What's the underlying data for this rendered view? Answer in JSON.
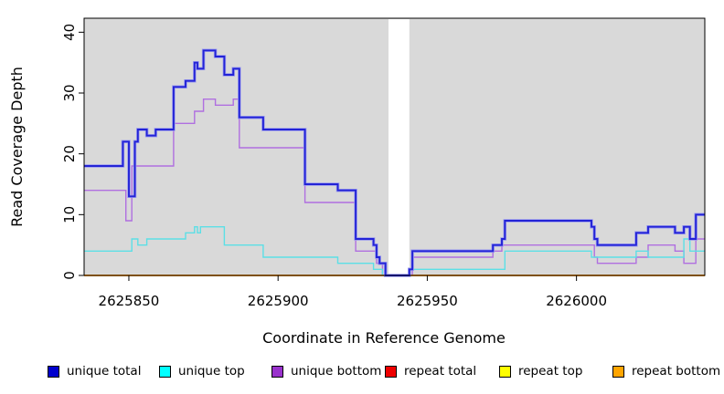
{
  "figure": {
    "plot_background": "#d9d9d9",
    "axis_color": "#000000",
    "gap_band_color": "#ffffff"
  },
  "chart_data": {
    "type": "line",
    "style": "step-after",
    "title": "",
    "xlabel": "Coordinate in Reference Genome",
    "ylabel": "Read Coverage Depth",
    "xlim": [
      2625835,
      2626043
    ],
    "ylim": [
      0,
      42.3
    ],
    "x_ticks": [
      2625850,
      2625900,
      2625950,
      2626000
    ],
    "y_ticks": [
      0,
      10,
      20,
      30,
      40
    ],
    "grid": false,
    "legend_position": "bottom",
    "gap_region": {
      "start": 2625937,
      "end": 2625944
    },
    "series": [
      {
        "name": "repeat total",
        "color": "#dd0000",
        "legend_color": "#ee0000",
        "width": 1.4,
        "steps": [
          [
            2625835,
            0
          ],
          [
            2626043,
            0
          ]
        ]
      },
      {
        "name": "repeat top",
        "color": "#ffff00",
        "legend_color": "#ffff00",
        "width": 1.4,
        "steps": [
          [
            2625835,
            0
          ],
          [
            2626043,
            0
          ]
        ]
      },
      {
        "name": "unique bottom",
        "color": "#b06fe0",
        "legend_color": "#9932cc",
        "width": 1.4,
        "steps": [
          [
            2625835,
            14
          ],
          [
            2625849,
            9
          ],
          [
            2625851,
            18
          ],
          [
            2625865,
            25
          ],
          [
            2625872,
            27
          ],
          [
            2625875,
            29
          ],
          [
            2625879,
            28
          ],
          [
            2625885,
            29
          ],
          [
            2625887,
            21
          ],
          [
            2625909,
            12
          ],
          [
            2625926,
            4
          ],
          [
            2625933,
            2
          ],
          [
            2625935,
            0
          ],
          [
            2625945,
            3
          ],
          [
            2625972,
            4
          ],
          [
            2625975,
            5
          ],
          [
            2626006,
            3
          ],
          [
            2626007,
            2
          ],
          [
            2626020,
            3
          ],
          [
            2626024,
            5
          ],
          [
            2626033,
            4
          ],
          [
            2626036,
            2
          ],
          [
            2626040,
            6
          ],
          [
            2626043,
            6
          ]
        ]
      },
      {
        "name": "unique top",
        "color": "#5cdfe6",
        "legend_color": "#00ffff",
        "width": 1.4,
        "steps": [
          [
            2625835,
            4
          ],
          [
            2625851,
            6
          ],
          [
            2625853,
            5
          ],
          [
            2625856,
            6
          ],
          [
            2625869,
            7
          ],
          [
            2625872,
            8
          ],
          [
            2625873,
            7
          ],
          [
            2625874,
            8
          ],
          [
            2625882,
            5
          ],
          [
            2625895,
            3
          ],
          [
            2625920,
            2
          ],
          [
            2625932,
            1
          ],
          [
            2625935,
            0
          ],
          [
            2625944,
            1
          ],
          [
            2625976,
            4
          ],
          [
            2626005,
            3
          ],
          [
            2626020,
            4
          ],
          [
            2626024,
            3
          ],
          [
            2626036,
            6
          ],
          [
            2626038,
            4
          ],
          [
            2626043,
            4
          ]
        ]
      },
      {
        "name": "repeat bottom",
        "color": "#ff9812",
        "legend_color": "#ffa500",
        "width": 1.7,
        "steps": [
          [
            2625835,
            0
          ],
          [
            2626043,
            0
          ]
        ]
      },
      {
        "name": "unique total",
        "color": "#2323d6",
        "halo": "#9b9bef",
        "legend_color": "#0000cd",
        "width": 1.9,
        "steps": [
          [
            2625835,
            18
          ],
          [
            2625848,
            22
          ],
          [
            2625850,
            13
          ],
          [
            2625852,
            22
          ],
          [
            2625853,
            24
          ],
          [
            2625856,
            23
          ],
          [
            2625859,
            24
          ],
          [
            2625865,
            31
          ],
          [
            2625869,
            32
          ],
          [
            2625872,
            35
          ],
          [
            2625873,
            34
          ],
          [
            2625875,
            37
          ],
          [
            2625879,
            36
          ],
          [
            2625882,
            33
          ],
          [
            2625885,
            34
          ],
          [
            2625887,
            26
          ],
          [
            2625895,
            24
          ],
          [
            2625909,
            15
          ],
          [
            2625920,
            14
          ],
          [
            2625926,
            6
          ],
          [
            2625932,
            5
          ],
          [
            2625933,
            3
          ],
          [
            2625934,
            2
          ],
          [
            2625936,
            0
          ],
          [
            2625944,
            1
          ],
          [
            2625945,
            4
          ],
          [
            2625972,
            5
          ],
          [
            2625975,
            6
          ],
          [
            2625976,
            9
          ],
          [
            2626005,
            8
          ],
          [
            2626006,
            6
          ],
          [
            2626007,
            5
          ],
          [
            2626020,
            7
          ],
          [
            2626024,
            8
          ],
          [
            2626033,
            7
          ],
          [
            2626036,
            8
          ],
          [
            2626038,
            6
          ],
          [
            2626040,
            10
          ],
          [
            2626043,
            10
          ]
        ]
      }
    ],
    "legend_order": [
      "unique total",
      "unique top",
      "unique bottom",
      "repeat total",
      "repeat top",
      "repeat bottom"
    ],
    "legend_offsets": [
      52,
      174,
      297,
      421,
      546,
      670
    ]
  }
}
